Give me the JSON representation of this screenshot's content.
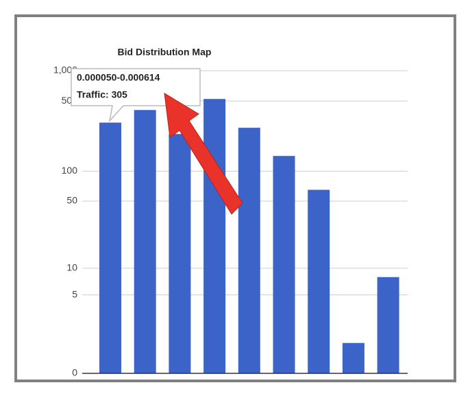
{
  "chart_data": {
    "type": "bar",
    "title": "Bid Distribution Map",
    "categories": [
      null,
      null,
      null,
      null,
      null,
      null,
      null,
      null,
      null
    ],
    "values": [
      305,
      407,
      235,
      524,
      271,
      142,
      65,
      1,
      8
    ],
    "color": "#3c63c8",
    "scale": "mirror-log",
    "ylim": [
      0,
      1000
    ],
    "yticks": [
      0,
      5,
      10,
      50,
      100,
      500,
      {
        "value": 1000,
        "label": "1,000"
      }
    ],
    "grid": true,
    "tooltip": {
      "title": "0.000050-0.000614",
      "text": "Traffic: 305"
    }
  }
}
